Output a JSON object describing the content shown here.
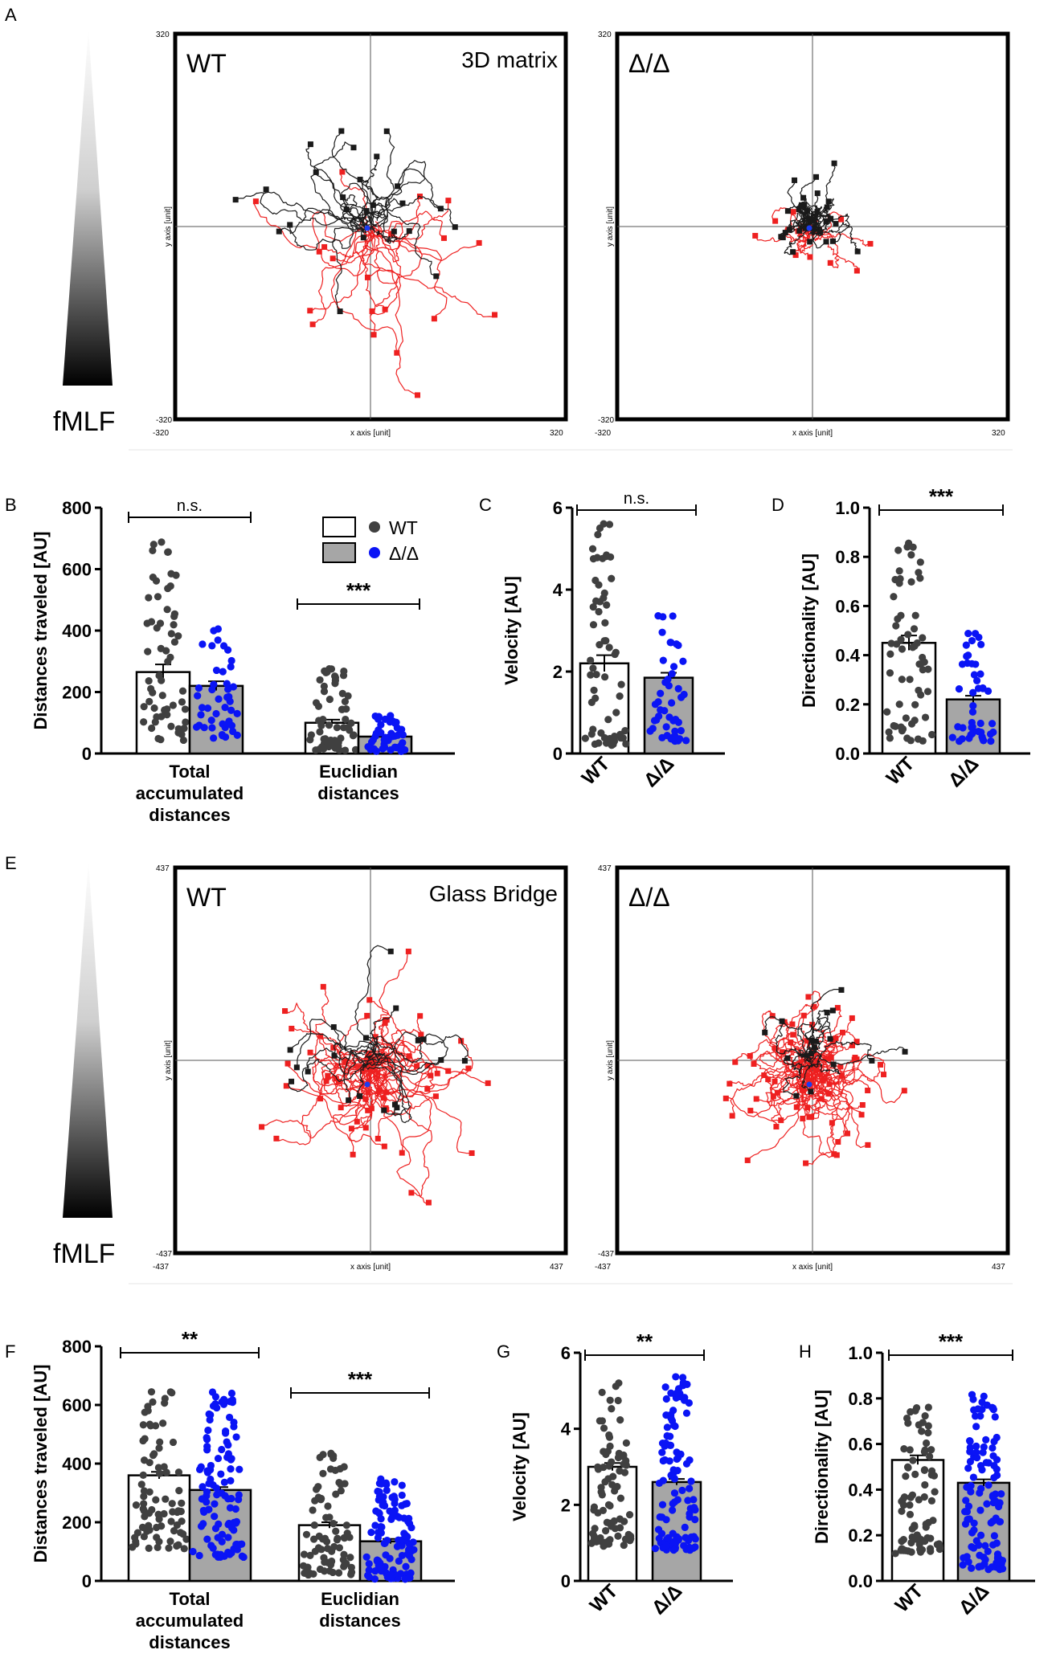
{
  "figure": {
    "panel_labels": [
      "A",
      "B",
      "C",
      "D",
      "E",
      "F",
      "G",
      "H"
    ],
    "colors": {
      "wt_dot": "#404040",
      "dd_dot": "#0a14f5",
      "wt_bar": "#ffffff",
      "dd_bar": "#a6a6a6",
      "track_black": "#1a1a1a",
      "track_red": "#ee2020",
      "center": "#1a3cf0"
    }
  },
  "chart_data": [
    {
      "panel": "A",
      "type": "scatter",
      "subtype": "trajectory-plot",
      "gradient_label": "fMLF",
      "plots": [
        {
          "id": "A-wt",
          "label": "WT",
          "condition": "3D matrix",
          "xlabel": "x axis [unit]",
          "ylabel": "y axis [unit]",
          "xmin": "-320",
          "xmax": "320",
          "ymin": "-320",
          "ymax": "320",
          "range": 320,
          "tracks_up": 24,
          "tracks_down": 20,
          "seed": 11
        },
        {
          "id": "A-dd",
          "label": "Δ/Δ",
          "condition": "",
          "xlabel": "x axis [unit]",
          "ylabel": "y axis [unit]",
          "xmin": "-320",
          "xmax": "320",
          "ymin": "-320",
          "ymax": "320",
          "range": 320,
          "tracks_up": 30,
          "tracks_down": 12,
          "seed": 23
        }
      ]
    },
    {
      "panel": "B",
      "type": "bar",
      "ylabel": "Distances traveled [AU]",
      "ylim": [
        0,
        800
      ],
      "yticks": [
        "0",
        "200",
        "400",
        "600",
        "800"
      ],
      "groups": [
        "Total accumulated distances",
        "Euclidian distances"
      ],
      "group_labels": [
        [
          "Total",
          "accumulated",
          "distances"
        ],
        [
          "Euclidian",
          "distances"
        ]
      ],
      "series": [
        {
          "name": "WT",
          "values": [
            265,
            100
          ]
        },
        {
          "name": "Δ/Δ",
          "values": [
            220,
            55
          ]
        }
      ],
      "errors": [
        [
          25,
          10
        ],
        [
          15,
          5
        ]
      ],
      "spreads": [
        [
          [
            40,
            690
          ],
          [
            10,
            280
          ]
        ],
        [
          [
            50,
            415
          ],
          [
            5,
            125
          ]
        ]
      ],
      "n": [
        60,
        45
      ],
      "significance": [
        {
          "label": "n.s.",
          "group": 0
        },
        {
          "label": "***",
          "group": 1
        }
      ],
      "legend": [
        "WT",
        "Δ/Δ"
      ]
    },
    {
      "panel": "C",
      "type": "bar",
      "ylabel": "Velocity [AU]",
      "ylim": [
        0,
        6
      ],
      "yticks": [
        "0",
        "2",
        "4",
        "6"
      ],
      "categories": [
        "WT",
        "Δ/Δ"
      ],
      "values": [
        2.2,
        1.85
      ],
      "errors": [
        0.2,
        0.12
      ],
      "spreads": [
        [
          0.2,
          5.7
        ],
        [
          0.3,
          3.4
        ]
      ],
      "n": [
        60,
        45
      ],
      "significance": "n.s."
    },
    {
      "panel": "D",
      "type": "bar",
      "ylabel": "Directionality [AU]",
      "ylim": [
        0,
        1.0
      ],
      "yticks": [
        "0.0",
        "0.2",
        "0.4",
        "0.6",
        "0.8",
        "1.0"
      ],
      "categories": [
        "WT",
        "Δ/Δ"
      ],
      "values": [
        0.45,
        0.22
      ],
      "errors": [
        0.03,
        0.015
      ],
      "spreads": [
        [
          0.05,
          0.9
        ],
        [
          0.05,
          0.5
        ]
      ],
      "n": [
        60,
        45
      ],
      "significance": "***"
    },
    {
      "panel": "E",
      "type": "scatter",
      "subtype": "trajectory-plot",
      "gradient_label": "fMLF",
      "plots": [
        {
          "id": "E-wt",
          "label": "WT",
          "condition": "Glass Bridge",
          "xlabel": "x axis [unit]",
          "ylabel": "y axis [unit]",
          "xmin": "-437",
          "xmax": "437",
          "ymin": "-437",
          "ymax": "437",
          "range": 437,
          "tracks_up": 18,
          "tracks_down": 60,
          "seed": 37
        },
        {
          "id": "E-dd",
          "label": "Δ/Δ",
          "condition": "",
          "xlabel": "x axis [unit]",
          "ylabel": "y axis [unit]",
          "xmin": "-437",
          "xmax": "437",
          "ymin": "-437",
          "ymax": "437",
          "range": 437,
          "tracks_up": 16,
          "tracks_down": 70,
          "seed": 51
        }
      ]
    },
    {
      "panel": "F",
      "type": "bar",
      "ylabel": "Distances traveled [AU]",
      "ylim": [
        0,
        800
      ],
      "yticks": [
        "0",
        "200",
        "400",
        "600",
        "800"
      ],
      "groups": [
        "Total accumulated distances",
        "Euclidian distances"
      ],
      "group_labels": [
        [
          "Total",
          "accumulated",
          "distances"
        ],
        [
          "Euclidian",
          "distances"
        ]
      ],
      "series": [
        {
          "name": "WT",
          "values": [
            360,
            190
          ]
        },
        {
          "name": "Δ/Δ",
          "values": [
            310,
            135
          ]
        }
      ],
      "errors": [
        [
          12,
          10
        ],
        [
          10,
          8
        ]
      ],
      "spreads": [
        [
          [
            110,
            645
          ],
          [
            20,
            440
          ]
        ],
        [
          [
            80,
            645
          ],
          [
            5,
            350
          ]
        ]
      ],
      "n": [
        80,
        110
      ],
      "significance": [
        {
          "label": "**",
          "group": 0
        },
        {
          "label": "***",
          "group": 1
        }
      ]
    },
    {
      "panel": "G",
      "type": "bar",
      "ylabel": "Velocity [AU]",
      "ylim": [
        0,
        6
      ],
      "yticks": [
        "0",
        "2",
        "4",
        "6"
      ],
      "categories": [
        "WT",
        "Δ/Δ"
      ],
      "values": [
        3.0,
        2.6
      ],
      "errors": [
        0.1,
        0.08
      ],
      "spreads": [
        [
          0.9,
          5.4
        ],
        [
          0.8,
          5.4
        ]
      ],
      "n": [
        80,
        110
      ],
      "significance": "**"
    },
    {
      "panel": "H",
      "type": "bar",
      "ylabel": "Directionality [AU]",
      "ylim": [
        0,
        1.0
      ],
      "yticks": [
        "0.0",
        "0.2",
        "0.4",
        "0.6",
        "0.8",
        "1.0"
      ],
      "categories": [
        "WT",
        "Δ/Δ"
      ],
      "values": [
        0.53,
        0.43
      ],
      "errors": [
        0.02,
        0.015
      ],
      "spreads": [
        [
          0.12,
          0.8
        ],
        [
          0.05,
          0.82
        ]
      ],
      "n": [
        80,
        110
      ],
      "significance": "***"
    }
  ]
}
